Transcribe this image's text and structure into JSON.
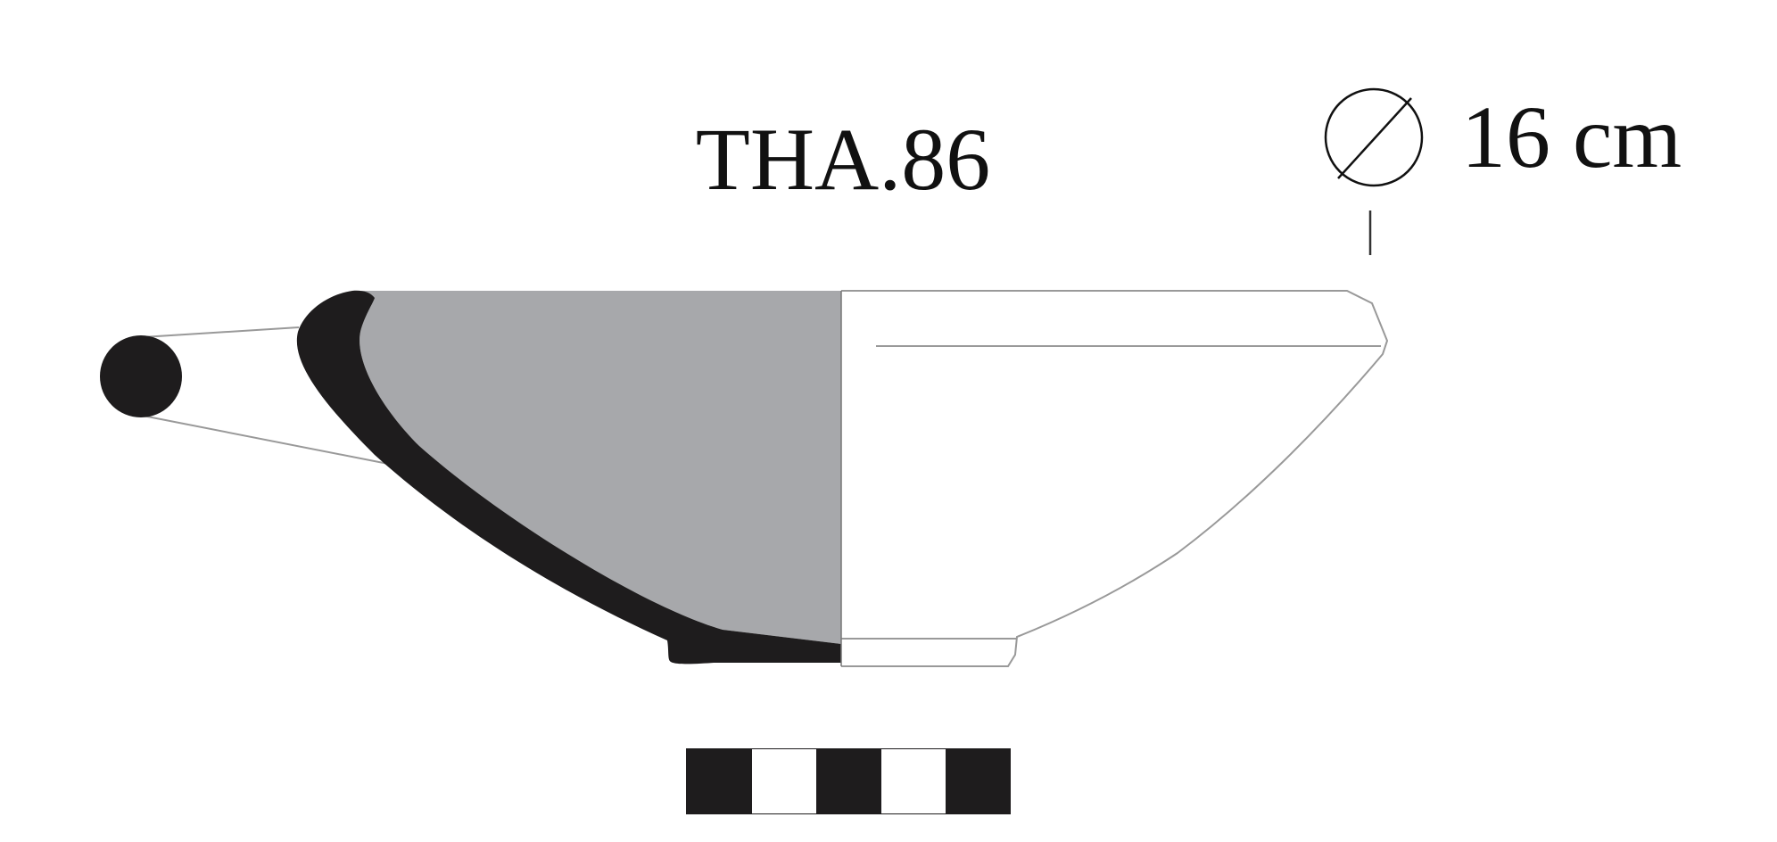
{
  "catalog_label": "THA.86",
  "diameter": {
    "symbol": "diameter-symbol-icon",
    "value": "16 cm"
  },
  "scale_bar": {
    "segments": [
      "black",
      "white",
      "black",
      "white",
      "black"
    ]
  },
  "colors": {
    "section_fill": "#1e1c1d",
    "interior_fill": "#a7a8ab",
    "outline": "#8a8a8a",
    "text": "#111111"
  }
}
